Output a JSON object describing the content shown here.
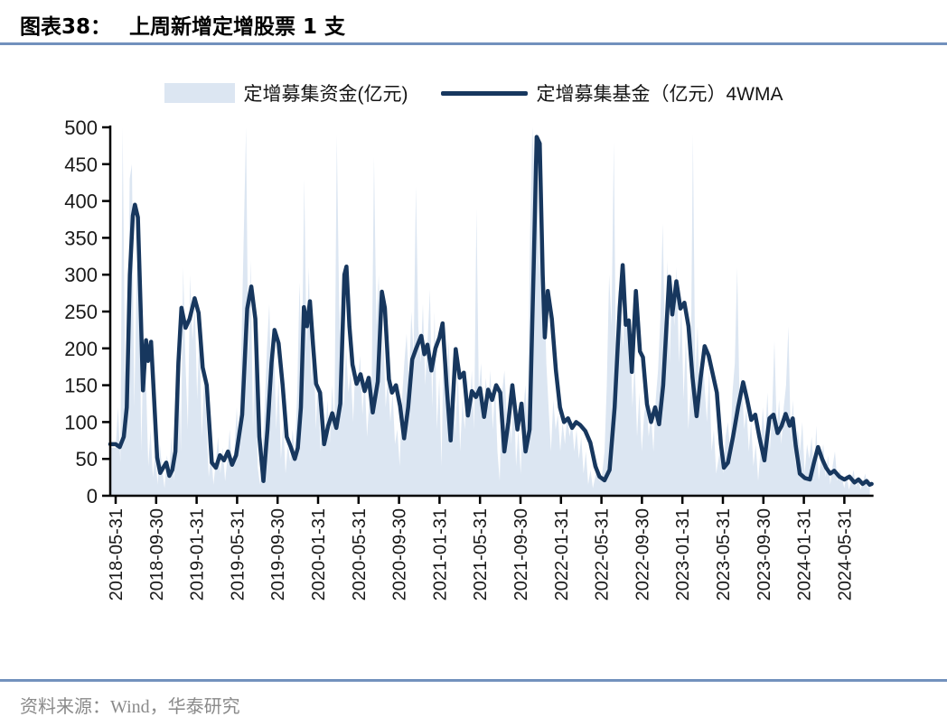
{
  "header": {
    "figure_label": "图表38：",
    "title": "上周新增定增股票 1 支"
  },
  "legend": {
    "area_label": "定增募集资金(亿元)",
    "line_label": "定增募集基金（亿元）4WMA"
  },
  "footer": {
    "source": "资料来源：Wind，华泰研究"
  },
  "colors": {
    "area": "#dce6f2",
    "line": "#17375e",
    "rule": "#7291bd",
    "axis": "#000000",
    "tick_text": "#1a1a1a",
    "source_text": "#8a8a8a"
  },
  "chart_data": {
    "type": "area+line",
    "title": "上周新增定增股票 1 支",
    "xlabel": "",
    "ylabel": "",
    "ylim": [
      0,
      500
    ],
    "yticks": [
      0,
      50,
      100,
      150,
      200,
      250,
      300,
      350,
      400,
      450,
      500
    ],
    "grid": false,
    "legend_position": "top",
    "x_tick_labels": [
      "2018-05-31",
      "2018-09-30",
      "2019-01-31",
      "2019-05-31",
      "2019-09-30",
      "2020-01-31",
      "2020-05-31",
      "2020-09-30",
      "2021-01-31",
      "2021-05-31",
      "2021-09-30",
      "2022-01-31",
      "2022-05-31",
      "2022-09-30",
      "2023-01-31",
      "2023-05-31",
      "2023-09-30",
      "2024-01-31",
      "2024-05-31"
    ],
    "x_tick_interval_months": 4,
    "x_unit": "months since 2018-05-31, weekly data",
    "series": [
      {
        "name": "定增募集资金(亿元)",
        "type": "area",
        "color": "#dce6f2",
        "x_start_month": 0,
        "x_step_month": 0.23,
        "values": [
          65,
          120,
          45,
          500,
          180,
          90,
          430,
          450,
          120,
          300,
          350,
          60,
          210,
          160,
          40,
          90,
          25,
          60,
          15,
          70,
          35,
          10,
          55,
          30,
          80,
          20,
          120,
          240,
          60,
          310,
          180,
          90,
          300,
          210,
          260,
          130,
          230,
          80,
          160,
          100,
          25,
          60,
          15,
          45,
          80,
          30,
          65,
          20,
          50,
          90,
          35,
          60,
          120,
          60,
          200,
          350,
          500,
          180,
          320,
          90,
          230,
          40,
          15,
          60,
          120,
          200,
          260,
          120,
          210,
          90,
          160,
          50,
          100,
          30,
          70,
          45,
          90,
          55,
          140,
          290,
          180,
          430,
          200,
          310,
          150,
          230,
          90,
          160,
          60,
          110,
          80,
          130,
          70,
          150,
          90,
          490,
          260,
          180,
          120,
          200,
          140,
          170,
          100,
          180,
          150,
          190,
          110,
          160,
          80,
          130,
          160,
          460,
          230,
          300,
          170,
          220,
          120,
          160,
          100,
          140,
          70,
          90,
          40,
          130,
          180,
          220,
          150,
          250,
          190,
          420,
          230,
          180,
          260,
          150,
          210,
          280,
          120,
          250,
          90,
          160,
          40,
          230,
          120,
          210,
          130,
          190,
          80,
          170,
          60,
          130,
          90,
          160,
          110,
          170,
          90,
          390,
          140,
          180,
          100,
          160,
          120,
          170,
          90,
          150,
          60,
          20,
          140,
          170,
          110,
          130,
          70,
          150,
          40,
          90,
          30,
          110,
          150,
          90,
          350,
          500,
          430,
          470,
          300,
          470,
          310,
          180,
          120,
          60,
          130,
          90,
          110,
          60,
          100,
          70,
          110,
          80,
          100,
          60,
          90,
          50,
          80,
          30,
          60,
          15,
          35,
          10,
          25,
          45,
          20,
          30,
          60,
          150,
          300,
          230,
          480,
          160,
          280,
          260,
          200,
          310,
          230,
          230,
          120,
          180,
          80,
          140,
          60,
          110,
          130,
          80,
          110,
          60,
          130,
          170,
          240,
          370,
          200,
          320,
          180,
          290,
          230,
          310,
          180,
          260,
          130,
          220,
          90,
          140,
          490,
          160,
          230,
          120,
          200,
          150,
          100,
          170,
          60,
          90,
          30,
          50,
          70,
          30,
          80,
          100,
          60,
          140,
          180,
          310,
          130,
          160,
          90,
          120,
          60,
          100,
          40,
          70,
          20,
          60,
          120,
          80,
          140,
          60,
          110,
          210,
          90,
          130,
          70,
          120,
          150,
          230,
          80,
          130,
          40,
          90,
          60,
          100,
          30,
          70,
          50,
          80,
          30,
          95,
          20,
          50,
          70,
          25,
          55,
          15,
          40,
          60,
          20,
          35,
          25,
          10,
          30,
          8,
          20,
          35,
          12,
          25,
          8,
          18,
          30,
          10,
          15
        ]
      },
      {
        "name": "定增募集基金（亿元）4WMA",
        "type": "line",
        "color": "#17375e",
        "keypoints_month_value": [
          [
            0,
            70
          ],
          [
            0.4,
            66
          ],
          [
            0.8,
            80
          ],
          [
            1.1,
            120
          ],
          [
            1.4,
            300
          ],
          [
            1.7,
            380
          ],
          [
            1.9,
            395
          ],
          [
            2.2,
            378
          ],
          [
            2.5,
            240
          ],
          [
            2.7,
            143
          ],
          [
            3.0,
            211
          ],
          [
            3.2,
            183
          ],
          [
            3.5,
            209
          ],
          [
            3.8,
            130
          ],
          [
            4.1,
            52
          ],
          [
            4.4,
            31
          ],
          [
            4.7,
            38
          ],
          [
            5.0,
            45
          ],
          [
            5.3,
            27
          ],
          [
            5.6,
            35
          ],
          [
            5.9,
            60
          ],
          [
            6.2,
            180
          ],
          [
            6.5,
            255
          ],
          [
            6.9,
            228
          ],
          [
            7.3,
            240
          ],
          [
            7.8,
            268
          ],
          [
            8.2,
            248
          ],
          [
            8.6,
            174
          ],
          [
            9.0,
            150
          ],
          [
            9.5,
            45
          ],
          [
            9.9,
            38
          ],
          [
            10.3,
            55
          ],
          [
            10.7,
            48
          ],
          [
            11.1,
            60
          ],
          [
            11.5,
            42
          ],
          [
            11.9,
            55
          ],
          [
            12.5,
            110
          ],
          [
            13.0,
            254
          ],
          [
            13.4,
            284
          ],
          [
            13.8,
            240
          ],
          [
            14.2,
            80
          ],
          [
            14.6,
            20
          ],
          [
            15.0,
            90
          ],
          [
            15.4,
            180
          ],
          [
            15.7,
            225
          ],
          [
            16.1,
            207
          ],
          [
            16.5,
            150
          ],
          [
            16.9,
            80
          ],
          [
            17.3,
            66
          ],
          [
            17.7,
            50
          ],
          [
            18.0,
            65
          ],
          [
            18.3,
            120
          ],
          [
            18.6,
            256
          ],
          [
            18.9,
            230
          ],
          [
            19.2,
            264
          ],
          [
            19.5,
            205
          ],
          [
            19.8,
            152
          ],
          [
            20.2,
            140
          ],
          [
            20.6,
            70
          ],
          [
            21.0,
            95
          ],
          [
            21.4,
            112
          ],
          [
            21.8,
            92
          ],
          [
            22.2,
            125
          ],
          [
            22.6,
            300
          ],
          [
            22.8,
            311
          ],
          [
            23.1,
            230
          ],
          [
            23.4,
            178
          ],
          [
            23.8,
            152
          ],
          [
            24.2,
            165
          ],
          [
            24.6,
            142
          ],
          [
            25.0,
            160
          ],
          [
            25.4,
            113
          ],
          [
            25.9,
            155
          ],
          [
            26.3,
            277
          ],
          [
            26.6,
            255
          ],
          [
            27.0,
            158
          ],
          [
            27.3,
            140
          ],
          [
            27.7,
            150
          ],
          [
            28.1,
            122
          ],
          [
            28.5,
            78
          ],
          [
            28.9,
            120
          ],
          [
            29.3,
            185
          ],
          [
            29.7,
            200
          ],
          [
            30.2,
            217
          ],
          [
            30.5,
            192
          ],
          [
            30.8,
            205
          ],
          [
            31.2,
            170
          ],
          [
            31.6,
            200
          ],
          [
            32.0,
            215
          ],
          [
            32.3,
            234
          ],
          [
            32.7,
            150
          ],
          [
            33.1,
            75
          ],
          [
            33.6,
            199
          ],
          [
            34.0,
            160
          ],
          [
            34.4,
            167
          ],
          [
            34.8,
            109
          ],
          [
            35.2,
            142
          ],
          [
            35.6,
            134
          ],
          [
            36.0,
            146
          ],
          [
            36.4,
            107
          ],
          [
            36.8,
            144
          ],
          [
            37.2,
            130
          ],
          [
            37.6,
            150
          ],
          [
            38.0,
            140
          ],
          [
            38.4,
            60
          ],
          [
            38.8,
            100
          ],
          [
            39.2,
            150
          ],
          [
            39.7,
            90
          ],
          [
            40.1,
            125
          ],
          [
            40.5,
            60
          ],
          [
            40.9,
            90
          ],
          [
            41.3,
            310
          ],
          [
            41.6,
            487
          ],
          [
            41.9,
            478
          ],
          [
            42.2,
            300
          ],
          [
            42.4,
            215
          ],
          [
            42.7,
            278
          ],
          [
            43.1,
            240
          ],
          [
            43.5,
            170
          ],
          [
            43.9,
            120
          ],
          [
            44.3,
            100
          ],
          [
            44.7,
            105
          ],
          [
            45.1,
            92
          ],
          [
            45.5,
            100
          ],
          [
            45.9,
            96
          ],
          [
            46.4,
            88
          ],
          [
            46.9,
            72
          ],
          [
            47.4,
            40
          ],
          [
            47.8,
            26
          ],
          [
            48.3,
            21
          ],
          [
            48.8,
            35
          ],
          [
            49.3,
            120
          ],
          [
            49.8,
            255
          ],
          [
            50.1,
            313
          ],
          [
            50.4,
            232
          ],
          [
            50.7,
            238
          ],
          [
            51.0,
            168
          ],
          [
            51.4,
            278
          ],
          [
            51.8,
            196
          ],
          [
            52.1,
            188
          ],
          [
            52.5,
            124
          ],
          [
            52.9,
            100
          ],
          [
            53.3,
            120
          ],
          [
            53.7,
            97
          ],
          [
            54.1,
            150
          ],
          [
            54.7,
            297
          ],
          [
            55.0,
            246
          ],
          [
            55.4,
            291
          ],
          [
            55.8,
            254
          ],
          [
            56.2,
            262
          ],
          [
            56.6,
            230
          ],
          [
            57.0,
            160
          ],
          [
            57.4,
            108
          ],
          [
            57.8,
            160
          ],
          [
            58.2,
            203
          ],
          [
            58.6,
            190
          ],
          [
            59.0,
            165
          ],
          [
            59.4,
            140
          ],
          [
            59.8,
            70
          ],
          [
            60.1,
            38
          ],
          [
            60.5,
            45
          ],
          [
            61.0,
            80
          ],
          [
            61.5,
            120
          ],
          [
            62.0,
            154
          ],
          [
            62.4,
            130
          ],
          [
            62.8,
            103
          ],
          [
            63.2,
            110
          ],
          [
            63.6,
            80
          ],
          [
            64.1,
            48
          ],
          [
            64.6,
            105
          ],
          [
            65.0,
            110
          ],
          [
            65.4,
            85
          ],
          [
            65.8,
            95
          ],
          [
            66.2,
            111
          ],
          [
            66.6,
            95
          ],
          [
            66.9,
            105
          ],
          [
            67.2,
            68
          ],
          [
            67.6,
            30
          ],
          [
            68.1,
            24
          ],
          [
            68.6,
            22
          ],
          [
            69.0,
            45
          ],
          [
            69.4,
            66
          ],
          [
            69.8,
            50
          ],
          [
            70.2,
            38
          ],
          [
            70.6,
            30
          ],
          [
            71.0,
            34
          ],
          [
            71.5,
            26
          ],
          [
            72.0,
            22
          ],
          [
            72.5,
            26
          ],
          [
            73.0,
            18
          ],
          [
            73.4,
            22
          ],
          [
            73.8,
            16
          ],
          [
            74.2,
            20
          ],
          [
            74.5,
            15
          ],
          [
            74.7,
            16
          ]
        ]
      }
    ]
  }
}
